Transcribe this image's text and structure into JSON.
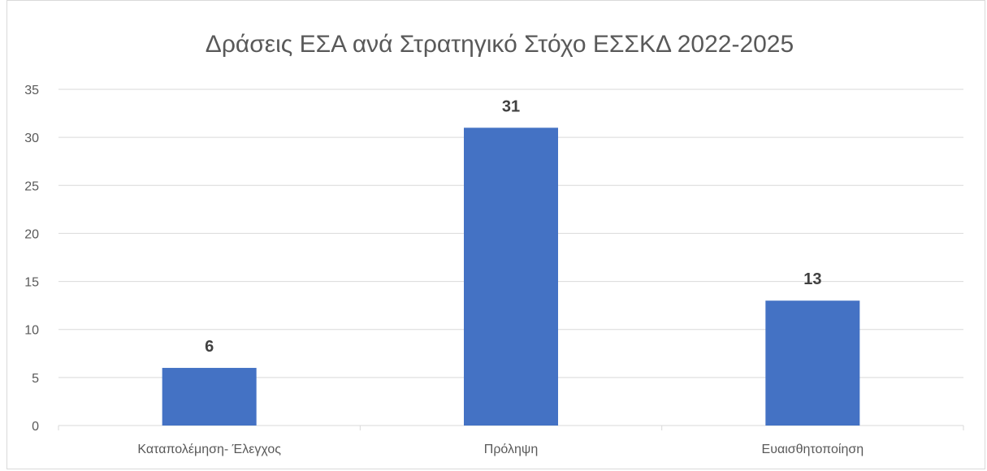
{
  "chart_data": {
    "type": "bar",
    "title": "Δράσεις ΕΣΑ ανά Στρατηγικό Στόχο ΕΣΣΚΔ 2022-2025",
    "categories": [
      "Καταπολέμηση- Έλεγχος",
      "Πρόληψη",
      "Ευαισθητοποίηση"
    ],
    "values": [
      6,
      31,
      13
    ],
    "data_labels": [
      "6",
      "31",
      "13"
    ],
    "yticks": [
      "0",
      "5",
      "10",
      "15",
      "20",
      "25",
      "30",
      "35"
    ],
    "ylim": [
      0,
      35
    ],
    "grid": true,
    "bar_color": "#4472c4",
    "grid_color": "#d9d9d9"
  }
}
